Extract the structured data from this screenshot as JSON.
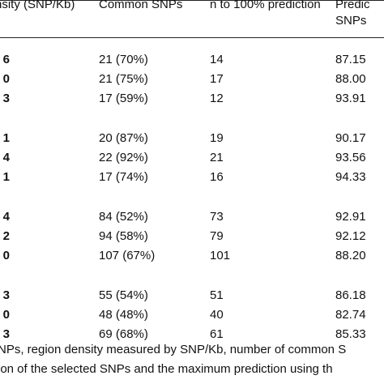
{
  "headers": {
    "density": "nsity (SNP/Kb)",
    "common": "Common SNPs",
    "n_to_100": "n to 100% prediction",
    "pred_line1": "Predic",
    "pred_line2": "SNPs"
  },
  "rows": [
    {
      "density": "6",
      "common": "21 (70%)",
      "n": "14",
      "pred": "87.15"
    },
    {
      "density": "0",
      "common": "21 (75%)",
      "n": "17",
      "pred": "88.00"
    },
    {
      "density": "3",
      "common": "17 (59%)",
      "n": "12",
      "pred": "93.91"
    },
    {
      "density": "1",
      "common": "20 (87%)",
      "n": "19",
      "pred": "90.17"
    },
    {
      "density": "4",
      "common": "22 (92%)",
      "n": "21",
      "pred": "93.56"
    },
    {
      "density": "1",
      "common": "17 (74%)",
      "n": "16",
      "pred": "94.33"
    },
    {
      "density": "4",
      "common": "84 (52%)",
      "n": "73",
      "pred": "92.91"
    },
    {
      "density": "2",
      "common": "94 (58%)",
      "n": "79",
      "pred": "92.12"
    },
    {
      "density": "0",
      "common": "107 (67%)",
      "n": "101",
      "pred": "88.20"
    },
    {
      "density": "3",
      "common": "55 (54%)",
      "n": "51",
      "pred": "86.18"
    },
    {
      "density": "0",
      "common": "48 (48%)",
      "n": "40",
      "pred": "82.74"
    },
    {
      "density": "3",
      "common": "69 (68%)",
      "n": "61",
      "pred": "85.33"
    }
  ],
  "caption": {
    "line1": "NPs, region density measured by SNP/Kb, number of common S",
    "line2": "ion of the selected SNPs and the maximum prediction using th"
  }
}
